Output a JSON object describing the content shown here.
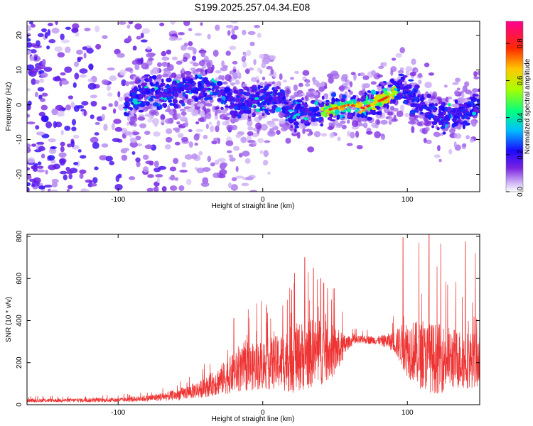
{
  "title": "S199.2025.257.04.34.E08",
  "colors": {
    "line": "#ee3333",
    "axis": "#000000",
    "background": "#ffffff"
  },
  "chart_data": [
    {
      "type": "heatmap",
      "xlabel": "Height of straight line (km)",
      "ylabel": "Frequency (Hz)",
      "xlim": [
        -163,
        150
      ],
      "ylim": [
        -25,
        24
      ],
      "xticks": [
        -100,
        0,
        100
      ],
      "yticks": [
        -20,
        -10,
        0,
        10,
        20
      ],
      "colorbar": {
        "label": "Normalized spectral amplitude",
        "range": [
          0,
          0.92
        ],
        "ticks": [
          0.0,
          0.2,
          0.4,
          0.6,
          0.8
        ]
      },
      "ridge": [
        [
          -163,
          0
        ],
        [
          -100,
          0
        ],
        [
          -90,
          1
        ],
        [
          -80,
          4
        ],
        [
          -70,
          3
        ],
        [
          -60,
          4
        ],
        [
          -50,
          5
        ],
        [
          -40,
          5
        ],
        [
          -30,
          3
        ],
        [
          -20,
          0
        ],
        [
          -10,
          1
        ],
        [
          0,
          1
        ],
        [
          10,
          3
        ],
        [
          20,
          -3
        ],
        [
          30,
          -1
        ],
        [
          40,
          -2
        ],
        [
          50,
          -1
        ],
        [
          60,
          0
        ],
        [
          70,
          -1
        ],
        [
          80,
          1
        ],
        [
          90,
          3
        ],
        [
          95,
          6
        ],
        [
          100,
          3
        ],
        [
          110,
          0
        ],
        [
          120,
          -4
        ],
        [
          130,
          -3
        ],
        [
          140,
          -2
        ],
        [
          150,
          0
        ]
      ]
    },
    {
      "type": "line",
      "xlabel": "Height of straight line (km)",
      "ylabel": "SNR (10 * v/v)",
      "xlim": [
        -163,
        150
      ],
      "ylim": [
        0,
        810
      ],
      "xticks": [
        -100,
        0,
        100
      ],
      "yticks": [
        0,
        200,
        400,
        600,
        800
      ],
      "envelope": {
        "x": [
          -163,
          -100,
          -80,
          -60,
          -40,
          -30,
          -20,
          -10,
          0,
          10,
          20,
          30,
          40,
          50,
          55,
          60,
          70,
          80,
          90,
          100,
          110,
          120,
          130,
          140,
          150
        ],
        "mean": [
          20,
          22,
          30,
          45,
          80,
          115,
          150,
          175,
          190,
          200,
          215,
          240,
          250,
          255,
          270,
          300,
          310,
          305,
          300,
          270,
          230,
          220,
          220,
          215,
          210
        ],
        "spread": [
          8,
          10,
          15,
          25,
          45,
          70,
          95,
          110,
          120,
          130,
          160,
          170,
          160,
          120,
          70,
          25,
          20,
          20,
          45,
          140,
          160,
          170,
          150,
          140,
          130
        ]
      },
      "peaks": [
        {
          "x": -20,
          "y": 410
        },
        {
          "x": 20,
          "y": 545
        },
        {
          "x": 22,
          "y": 625
        },
        {
          "x": 29,
          "y": 700
        },
        {
          "x": 35,
          "y": 650
        },
        {
          "x": 40,
          "y": 600
        },
        {
          "x": 97,
          "y": 795
        },
        {
          "x": 108,
          "y": 770
        },
        {
          "x": 115,
          "y": 825
        },
        {
          "x": 123,
          "y": 765
        },
        {
          "x": 140,
          "y": 775
        },
        {
          "x": 147,
          "y": 720
        }
      ]
    }
  ]
}
